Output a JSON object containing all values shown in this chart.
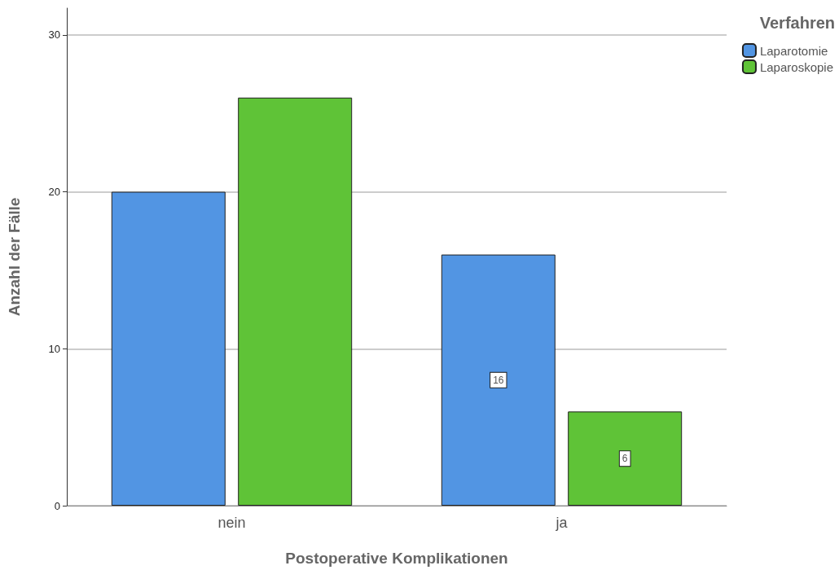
{
  "chart_data": {
    "type": "bar",
    "xlabel": "Postoperative Komplikationen",
    "ylabel": "Anzahl der Fälle",
    "legend_title": "Verfahren",
    "categories": [
      "nein",
      "ja"
    ],
    "series": [
      {
        "name": "Laparotomie",
        "color": "#5295e3",
        "values": [
          20,
          16
        ],
        "value_labels": [
          null,
          "16"
        ]
      },
      {
        "name": "Laparoskopie",
        "color": "#5fc337",
        "values": [
          26,
          6
        ],
        "value_labels": [
          null,
          "6"
        ]
      }
    ],
    "ylim": [
      0,
      31.7
    ],
    "yticks": [
      0,
      10,
      20,
      30
    ],
    "grid": "y",
    "legend": "top right"
  }
}
